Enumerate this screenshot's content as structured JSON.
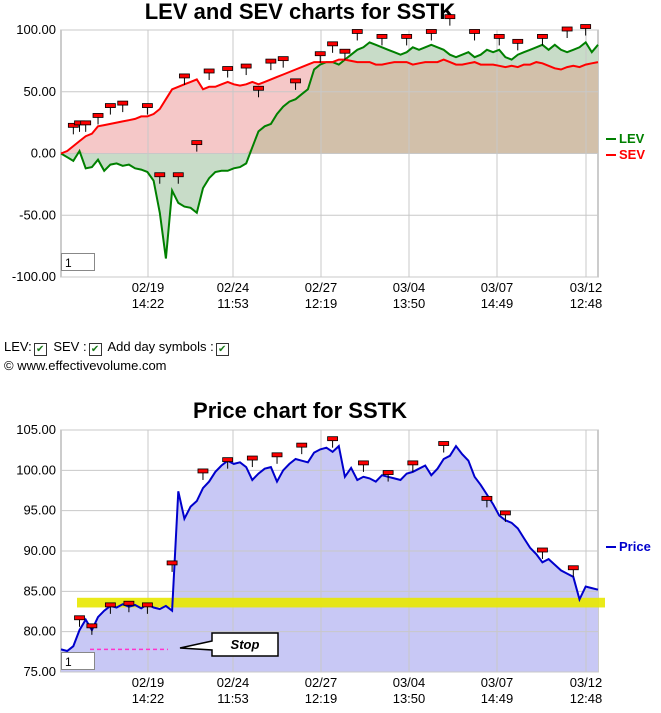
{
  "chart_data": [
    {
      "type": "line",
      "title": "LEV and SEV charts for SSTK",
      "xlabel": "",
      "ylabel": "",
      "ylim": [
        -100,
        100
      ],
      "y_ticks": [
        "100.00",
        "50.00",
        "0.00",
        "-50.00",
        "-100.00"
      ],
      "x_tick_labels": [
        [
          "02/19",
          "14:22"
        ],
        [
          "02/24",
          "11:53"
        ],
        [
          "02/27",
          "12:19"
        ],
        [
          "03/04",
          "13:50"
        ],
        [
          "03/07",
          "14:49"
        ],
        [
          "03/12",
          "12:48"
        ]
      ],
      "legend_position": "right",
      "grid": true,
      "series": [
        {
          "name": "LEV",
          "color": "#008000",
          "values": [
            0,
            -3,
            -6,
            2,
            -12,
            -11,
            -5,
            -14,
            -9,
            -8,
            -10,
            -9,
            -12,
            -13,
            -15,
            -22,
            -48,
            -85,
            -30,
            -40,
            -43,
            -44,
            -48,
            -28,
            -20,
            -15,
            -14,
            -14,
            -12,
            -11,
            -8,
            5,
            18,
            22,
            24,
            32,
            38,
            42,
            44,
            48,
            52,
            68,
            72,
            74,
            74,
            72,
            76,
            80,
            84,
            86,
            90,
            88,
            86,
            84,
            82,
            80,
            82,
            86,
            84,
            86,
            88,
            86,
            84,
            80,
            78,
            80,
            82,
            78,
            80,
            84,
            82,
            84,
            78,
            76,
            80,
            82,
            84,
            86,
            88,
            84,
            88,
            84,
            82,
            84,
            86,
            90,
            82,
            88
          ],
          "day_symbols": [
            {
              "i": 2,
              "v": 22
            },
            {
              "i": 3,
              "v": 24
            },
            {
              "i": 4,
              "v": 24
            },
            {
              "i": 8,
              "v": 38
            },
            {
              "i": 10,
              "v": 40
            },
            {
              "i": 16,
              "v": -18
            },
            {
              "i": 19,
              "v": -18
            },
            {
              "i": 22,
              "v": 8
            },
            {
              "i": 32,
              "v": 52
            },
            {
              "i": 38,
              "v": 58
            },
            {
              "i": 44,
              "v": 88
            },
            {
              "i": 48,
              "v": 98
            },
            {
              "i": 52,
              "v": 94
            },
            {
              "i": 56,
              "v": 94
            },
            {
              "i": 60,
              "v": 98
            },
            {
              "i": 63,
              "v": 110
            },
            {
              "i": 67,
              "v": 98
            },
            {
              "i": 71,
              "v": 94
            },
            {
              "i": 74,
              "v": 90
            },
            {
              "i": 78,
              "v": 94
            },
            {
              "i": 82,
              "v": 100
            },
            {
              "i": 85,
              "v": 102
            }
          ]
        },
        {
          "name": "SEV",
          "color": "#ff0000",
          "values": [
            0,
            2,
            6,
            10,
            14,
            16,
            22,
            23,
            24,
            25,
            26,
            27,
            28,
            30,
            30,
            32,
            36,
            44,
            52,
            54,
            56,
            58,
            60,
            52,
            54,
            54,
            56,
            58,
            56,
            55,
            56,
            58,
            56,
            58,
            60,
            62,
            64,
            66,
            68,
            70,
            72,
            74,
            74,
            74,
            74,
            76,
            76,
            75,
            74,
            74,
            74,
            72,
            72,
            73,
            74,
            74,
            74,
            72,
            73,
            74,
            74,
            74,
            76,
            74,
            72,
            72,
            73,
            74,
            72,
            72,
            72,
            71,
            70,
            71,
            70,
            72,
            72,
            74,
            73,
            71,
            69,
            68,
            70,
            71,
            70,
            72,
            73,
            74
          ],
          "day_symbols": [
            {
              "i": 6,
              "v": 30
            },
            {
              "i": 14,
              "v": 38
            },
            {
              "i": 20,
              "v": 62
            },
            {
              "i": 24,
              "v": 66
            },
            {
              "i": 27,
              "v": 68
            },
            {
              "i": 30,
              "v": 70
            },
            {
              "i": 34,
              "v": 74
            },
            {
              "i": 36,
              "v": 76
            },
            {
              "i": 42,
              "v": 80
            },
            {
              "i": 46,
              "v": 82
            }
          ]
        }
      ],
      "zoom_value": "1"
    },
    {
      "type": "line",
      "title": "Price chart for SSTK",
      "xlabel": "",
      "ylabel": "",
      "ylim": [
        75,
        105
      ],
      "y_ticks": [
        "105.00",
        "100.00",
        "95.00",
        "90.00",
        "85.00",
        "80.00",
        "75.00"
      ],
      "x_tick_labels": [
        [
          "02/19",
          "14:22"
        ],
        [
          "02/24",
          "11:53"
        ],
        [
          "02/27",
          "12:19"
        ],
        [
          "03/04",
          "13:50"
        ],
        [
          "03/07",
          "14:49"
        ],
        [
          "03/12",
          "12:48"
        ]
      ],
      "legend_position": "right",
      "grid": true,
      "series": [
        {
          "name": "Price",
          "color": "#0000cc",
          "values": [
            77.8,
            77.6,
            78.2,
            80.2,
            81.5,
            80.2,
            81.8,
            82.6,
            83.2,
            83.0,
            83.4,
            83.1,
            83.3,
            82.9,
            83.4,
            83.0,
            82.8,
            83.2,
            82.6,
            97.4,
            94.0,
            95.5,
            96.2,
            97.8,
            98.6,
            99.8,
            100.6,
            101.2,
            100.8,
            101.0,
            100.4,
            98.8,
            99.6,
            100.2,
            100.4,
            98.6,
            100.0,
            100.8,
            101.4,
            101.2,
            101.0,
            102.2,
            102.6,
            102.8,
            102.3,
            103.0,
            99.2,
            100.3,
            98.8,
            99.2,
            99.0,
            98.6,
            99.4,
            99.2,
            99.0,
            98.8,
            99.6,
            99.8,
            100.2,
            100.6,
            99.4,
            100.2,
            101.4,
            101.8,
            103.0,
            102.0,
            101.2,
            99.2,
            98.2,
            97.0,
            95.8,
            94.4,
            93.8,
            93.5,
            92.8,
            91.6,
            90.4,
            89.6,
            88.6,
            89.0,
            88.3,
            87.6,
            87.2,
            86.8,
            84.0,
            85.6,
            85.4,
            85.2
          ],
          "day_symbols": [
            {
              "i": 3,
              "v": 81.6
            },
            {
              "i": 5,
              "v": 80.6
            },
            {
              "i": 8,
              "v": 83.2
            },
            {
              "i": 11,
              "v": 83.4
            },
            {
              "i": 14,
              "v": 83.2
            },
            {
              "i": 18,
              "v": 88.4
            },
            {
              "i": 23,
              "v": 99.8
            },
            {
              "i": 27,
              "v": 101.2
            },
            {
              "i": 31,
              "v": 101.4
            },
            {
              "i": 35,
              "v": 101.8
            },
            {
              "i": 39,
              "v": 103.0
            },
            {
              "i": 44,
              "v": 103.8
            },
            {
              "i": 49,
              "v": 100.8
            },
            {
              "i": 53,
              "v": 99.6
            },
            {
              "i": 57,
              "v": 100.8
            },
            {
              "i": 62,
              "v": 103.2
            },
            {
              "i": 69,
              "v": 96.4
            },
            {
              "i": 72,
              "v": 94.6
            },
            {
              "i": 78,
              "v": 90.0
            },
            {
              "i": 83,
              "v": 87.8
            }
          ]
        }
      ],
      "highlight_band": [
        83.0,
        84.2
      ],
      "stop_level": 77.8,
      "annotation": "Stop",
      "zoom_value": "1"
    }
  ],
  "options": {
    "lev_label": "LEV:",
    "sev_label": "SEV :",
    "day_symbols_label": "Add day symbols :",
    "lev_checked": true,
    "sev_checked": true,
    "day_symbols_checked": true
  },
  "copyright": "© www.effectivevolume.com",
  "colors": {
    "lev": "#008000",
    "sev": "#ff0000",
    "price": "#0000cc",
    "sev_fill": "#f5c8c8",
    "lev_fill": "#c8dcc8",
    "overlap_fill": "#d2c0aa",
    "price_fill": "#c8c8f5",
    "band": "#e8e800",
    "stop_line": "#ff33cc"
  }
}
